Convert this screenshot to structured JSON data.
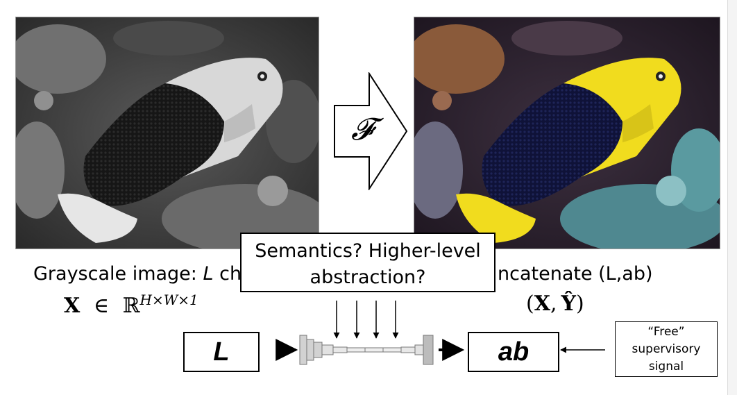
{
  "operator_label": "𝓕",
  "left_caption": {
    "prefix": "Grayscale image: ",
    "italic": "L",
    "visible": " ch"
  },
  "right_caption": {
    "visible": "ncatenate (L,ab)"
  },
  "left_math": {
    "bold_symbol": "X",
    "rel": "∈",
    "space": "ℝ",
    "exponent": "H×W×1"
  },
  "right_math": {
    "expr_open": "(",
    "x": "X",
    "comma": ",",
    "yhat": "Ŷ",
    "expr_close": ")"
  },
  "callout": {
    "line1": "Semantics? Higher-level",
    "line2": "abstraction?"
  },
  "input_box": "L",
  "output_box": "ab",
  "signal_box": {
    "line1": "“Free”",
    "line2": "supervisory",
    "line3": "signal"
  },
  "colors": {
    "fish_yellow": "#f1dc1e",
    "fish_blue": "#14174a",
    "network_gray": "#c8c8c8"
  }
}
